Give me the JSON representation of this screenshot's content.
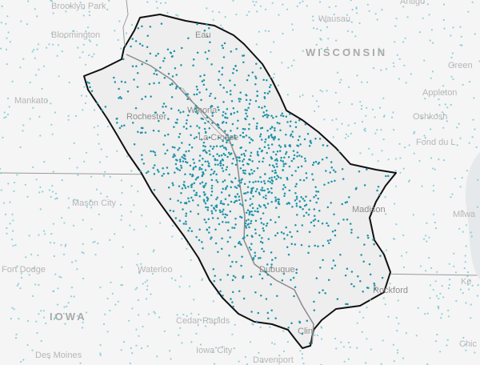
{
  "map": {
    "colors": {
      "background": "#f5f5f5",
      "water": "#d9dde0",
      "border": "#9a9a9a",
      "basin_fill": "#eeeeee",
      "basin_outline": "#111111",
      "dot_inside": "#1f93a8",
      "dot_outside": "#6cc3d2"
    },
    "labels": {
      "brooklyn_park": "Brooklyn Park",
      "bloomington": "Bloomington",
      "mankato": "Mankato",
      "rochester": "Rochester",
      "mason_city": "Mason City",
      "fort_dodge": "Fort Dodge",
      "waterloo": "Waterloo",
      "iowa": "IOWA",
      "des_moines": "Des Moines",
      "cedar_rapids": "Cedar Rapids",
      "iowa_city": "Iowa City",
      "davenport": "Davenport",
      "clinton": "Clin",
      "dubuque": "Dubuque",
      "rockford": "Rockford",
      "madison": "Madison",
      "milwaukee": "Milwa",
      "fond_du_lac": "Fond du L",
      "oshkosh": "Oshkosh",
      "appleton": "Appleton",
      "green_bay": "Green",
      "wisconsin": "WISCONSIN",
      "wausau": "Wausau",
      "antigo": "Antigo",
      "eau_claire": "Eau",
      "la_crosse": "La Crosse",
      "winona": "Winona",
      "chicago": "Chic",
      "kenosha": "Ke"
    }
  }
}
